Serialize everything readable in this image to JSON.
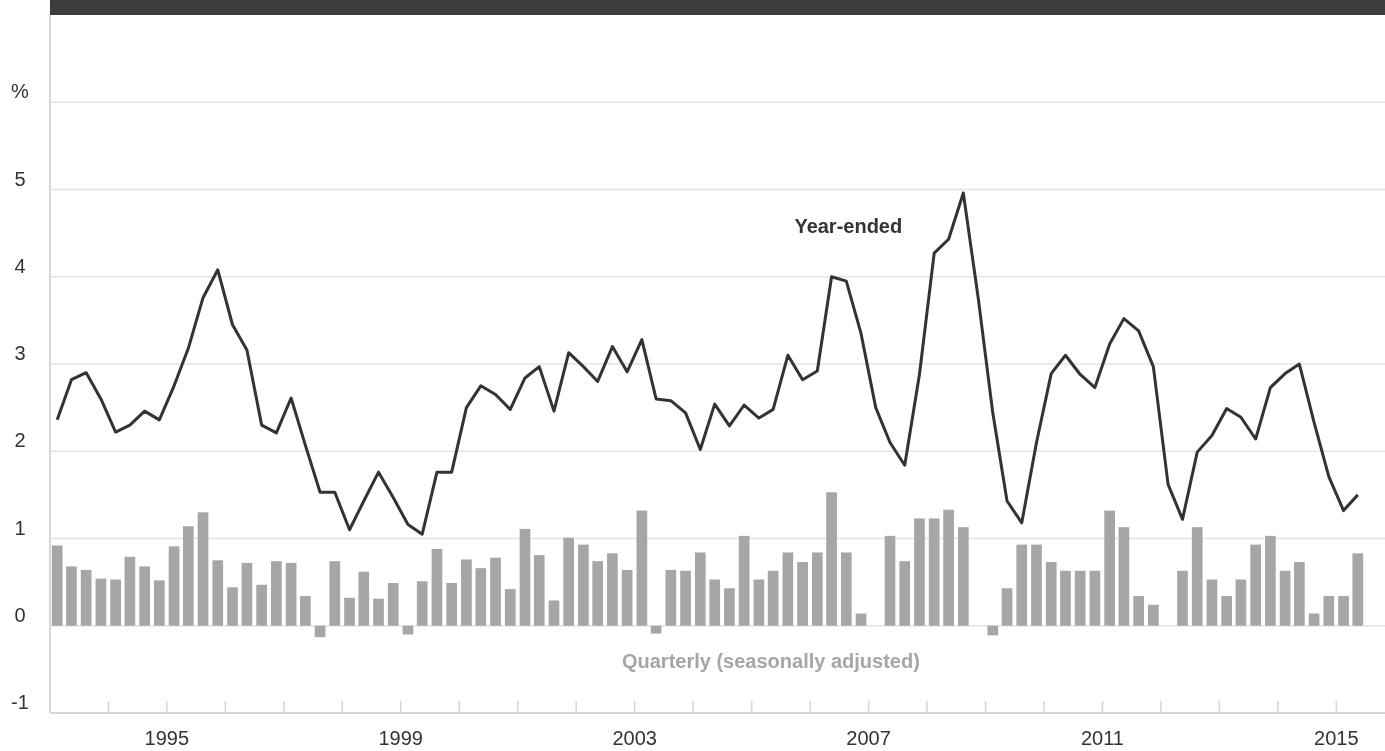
{
  "chart_data": {
    "type": "bar",
    "ylabel": "%",
    "grid": "y",
    "x": [
      "1993-02-15",
      "1993-05-15",
      "1993-08-15",
      "1993-11-15",
      "1994-02-15",
      "1994-05-15",
      "1994-08-15",
      "1994-11-15",
      "1995-02-15",
      "1995-05-15",
      "1995-08-15",
      "1995-11-15",
      "1996-02-15",
      "1996-05-15",
      "1996-08-15",
      "1996-11-15",
      "1997-02-15",
      "1997-05-15",
      "1997-08-15",
      "1997-11-15",
      "1998-02-15",
      "1998-05-15",
      "1998-08-15",
      "1998-11-15",
      "1999-02-15",
      "1999-05-15",
      "1999-08-15",
      "1999-11-15",
      "2000-02-15",
      "2000-05-15",
      "2000-08-15",
      "2000-11-15",
      "2001-02-15",
      "2001-05-15",
      "2001-08-15",
      "2001-11-15",
      "2002-02-15",
      "2002-05-15",
      "2002-08-15",
      "2002-11-15",
      "2003-02-15",
      "2003-05-15",
      "2003-08-15",
      "2003-11-15",
      "2004-02-15",
      "2004-05-15",
      "2004-08-15",
      "2004-11-15",
      "2005-02-15",
      "2005-05-15",
      "2005-08-15",
      "2005-11-15",
      "2006-02-15",
      "2006-05-15",
      "2006-08-15",
      "2006-11-15",
      "2007-02-15",
      "2007-05-15",
      "2007-08-15",
      "2007-11-15",
      "2008-02-15",
      "2008-05-15",
      "2008-08-15",
      "2008-11-15",
      "2009-02-15",
      "2009-05-15",
      "2009-08-15",
      "2009-11-15",
      "2010-02-15",
      "2010-05-15",
      "2010-08-15",
      "2010-11-15",
      "2011-02-15",
      "2011-05-15",
      "2011-08-15",
      "2011-11-15",
      "2012-02-15",
      "2012-05-15",
      "2012-08-15",
      "2012-11-15",
      "2013-02-15",
      "2013-05-15",
      "2013-08-15",
      "2013-11-15",
      "2014-02-15",
      "2014-05-15",
      "2014-08-15",
      "2014-11-15",
      "2015-02-15",
      "2015-05-15"
    ],
    "series": [
      {
        "name": "Quarterly (seasonally adjusted)",
        "color": "#a6a6a6",
        "values": [
          0.92,
          0.68,
          0.64,
          0.54,
          0.53,
          0.79,
          0.68,
          0.52,
          0.91,
          1.14,
          1.3,
          0.75,
          0.44,
          0.72,
          0.47,
          0.74,
          0.72,
          0.34,
          -0.13,
          0.74,
          0.32,
          0.62,
          0.31,
          0.49,
          -0.1,
          0.51,
          0.88,
          0.49,
          0.76,
          0.66,
          0.78,
          0.42,
          1.11,
          0.81,
          0.29,
          1.01,
          0.93,
          0.74,
          0.83,
          0.64,
          1.32,
          -0.09,
          0.64,
          0.63,
          0.84,
          0.53,
          0.43,
          1.03,
          0.53,
          0.63,
          0.84,
          0.73,
          0.84,
          1.53,
          0.84,
          0.14,
          0,
          1.03,
          0.74,
          1.23,
          1.23,
          1.33,
          1.13,
          0,
          -0.11,
          0.43,
          0.93,
          0.93,
          0.73,
          0.63,
          0.63,
          0.63,
          1.32,
          1.13,
          0.34,
          0.24,
          0,
          0.63,
          1.13,
          0.53,
          0.34,
          0.53,
          0.93,
          1.03,
          0.63,
          0.73,
          0.14,
          0.34,
          0.34,
          0.83
        ]
      },
      {
        "name": "Year-ended",
        "type": "line",
        "color": "#333333",
        "values": [
          2.36,
          2.82,
          2.9,
          2.6,
          2.22,
          2.3,
          2.46,
          2.36,
          2.75,
          3.18,
          3.76,
          4.08,
          3.45,
          3.16,
          2.3,
          2.21,
          2.61,
          2.07,
          1.53,
          1.53,
          1.1,
          1.43,
          1.76,
          1.47,
          1.16,
          1.05,
          1.76,
          1.76,
          2.5,
          2.75,
          2.65,
          2.48,
          2.84,
          2.97,
          2.46,
          3.13,
          2.97,
          2.8,
          3.2,
          2.91,
          3.28,
          2.6,
          2.58,
          2.44,
          2.02,
          2.54,
          2.29,
          2.53,
          2.38,
          2.48,
          3.1,
          2.82,
          2.92,
          4.0,
          3.95,
          3.35,
          2.5,
          2.1,
          1.84,
          2.88,
          4.27,
          4.43,
          4.96,
          3.77,
          2.44,
          1.43,
          1.18,
          2.1,
          2.89,
          3.1,
          2.88,
          2.73,
          3.23,
          3.52,
          3.38,
          2.97,
          1.62,
          1.22,
          1.99,
          2.18,
          2.49,
          2.39,
          2.14,
          2.73,
          2.89,
          3.0,
          2.33,
          1.71,
          1.32,
          1.5
        ]
      }
    ],
    "ylim": [
      -1,
      7
    ],
    "yticks": [
      -1,
      0,
      1,
      2,
      3,
      4,
      5,
      {
        "value": 6,
        "label": null
      }
    ],
    "xlim": [
      "1993-01",
      "2015-11"
    ],
    "xticks": [
      {
        "value": "1994",
        "label": null
      },
      {
        "value": "1995",
        "label": "1995"
      },
      {
        "value": "1996",
        "label": null
      },
      {
        "value": "1997",
        "label": null
      },
      {
        "value": "1998",
        "label": null
      },
      {
        "value": "1999",
        "label": "1999"
      },
      {
        "value": "2000",
        "label": null
      },
      {
        "value": "2001",
        "label": null
      },
      {
        "value": "2002",
        "label": null
      },
      {
        "value": "2003",
        "label": "2003"
      },
      {
        "value": "2004",
        "label": null
      },
      {
        "value": "2005",
        "label": null
      },
      {
        "value": "2006",
        "label": null
      },
      {
        "value": "2007",
        "label": "2007"
      },
      {
        "value": "2008",
        "label": null
      },
      {
        "value": "2009",
        "label": null
      },
      {
        "value": "2010",
        "label": null
      },
      {
        "value": "2011",
        "label": "2011"
      },
      {
        "value": "2012",
        "label": null
      },
      {
        "value": "2013",
        "label": null
      },
      {
        "value": "2014",
        "label": null
      },
      {
        "value": "2015",
        "label": "2015"
      }
    ]
  }
}
